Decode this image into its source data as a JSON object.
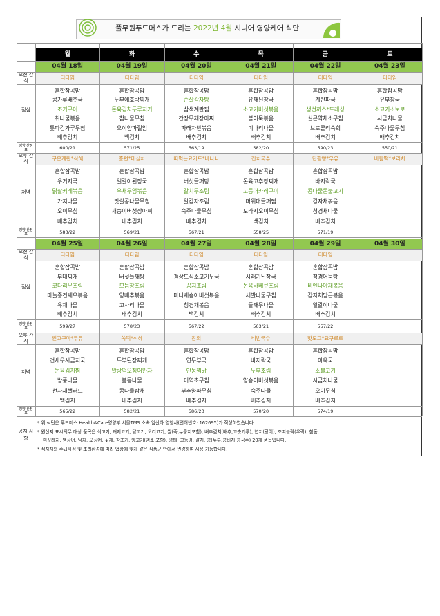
{
  "header": {
    "title_prefix": "풀무원푸드머스가 드리는",
    "title_highlight": "2022년 4월",
    "title_suffix": "시니어 영양케어 식단"
  },
  "weekdays": [
    "월",
    "화",
    "수",
    "목",
    "금",
    "토"
  ],
  "row_labels": {
    "morning_snack": "오전 간식",
    "lunch": "점심",
    "nutrition": "영양 산정표",
    "afternoon_snack": "오후 간식",
    "dinner": "저녁"
  },
  "weeks": [
    {
      "dates": [
        "04월 18일",
        "04월 19일",
        "04월 20일",
        "04월 21일",
        "04월 22일",
        "04월 23일"
      ],
      "morning_snack": [
        "티타임",
        "티타임",
        "티타임",
        "티타임",
        "티타임",
        "티타임"
      ],
      "lunch": [
        {
          "items": [
            "혼합잡곡밥",
            "콩가루배춧국",
            "조기구이",
            "취나물볶음",
            "톳파김가루무침",
            "배추김치"
          ],
          "main": 2
        },
        {
          "items": [
            "혼합잡곡밥",
            "두부애호박찌개",
            "돈육김치두루치기",
            "참나물무침",
            "오이양파절임",
            "백김치"
          ],
          "main": 2
        },
        {
          "items": [
            "혼합잡곡밥",
            "순살감자탕",
            "삼색계란찜",
            "간장무채장아찌",
            "파래자반볶음",
            "배추김치"
          ],
          "main": 1
        },
        {
          "items": [
            "혼합잡곡밥",
            "유채된장국",
            "소고기버섯볶음",
            "볼어묵볶음",
            "미나리나물",
            "배추김치"
          ],
          "main": 2
        },
        {
          "items": [
            "혼합잡곡밥",
            "계란파국",
            "생선까스*드레싱",
            "실곤약채소무침",
            "브로콜리숙회",
            "배추김치"
          ],
          "main": 2
        },
        {
          "items": [
            "혼합잡곡밥",
            "유부장국",
            "소고기소보로",
            "시금치나물",
            "숙주나물무침",
            "배추김치"
          ],
          "main": 2
        }
      ],
      "lunch_nutrition": [
        "600/21",
        "571/25",
        "563/19",
        "582/20",
        "590/23",
        "550/21"
      ],
      "afternoon_snack": [
        "구운계란*식혜",
        "증편*매실차",
        "떠먹는요거트*바나나",
        "잔치국수",
        "단팥빵*우유",
        "바람떡*보리차"
      ],
      "dinner": [
        {
          "items": [
            "혼합잡곡밥",
            "우거지국",
            "닭살커레볶음",
            "가지나물",
            "오이무침",
            "배추김치"
          ],
          "main": 2
        },
        {
          "items": [
            "혼합잡곡밥",
            "얼갈이된장국",
            "우채우엉볶음",
            "맛살콩나물무침",
            "새송이버섯장아찌",
            "배추김치"
          ],
          "main": 2
        },
        {
          "items": [
            "혼합잡곡밥",
            "버섯들깨탕",
            "갈치무조림",
            "알감자조림",
            "숙주나물무침",
            "배추김치"
          ],
          "main": 2
        },
        {
          "items": [
            "혼합잡곡밥",
            "돈육고추장찌개",
            "고등어카레구이",
            "머위대들깨찜",
            "도라지오이무침",
            "백김치"
          ],
          "main": 2
        },
        {
          "items": [
            "혼합잡곡밥",
            "바지락국",
            "콩나물돈불고기",
            "감자채볶음",
            "청경채나물",
            "배추김치"
          ],
          "main": 2
        },
        null
      ],
      "dinner_nutrition": [
        "583/22",
        "569/21",
        "567/21",
        "558/25",
        "571/19",
        null
      ]
    },
    {
      "dates": [
        "04월 25일",
        "04월 26일",
        "04월 27일",
        "04월 28일",
        "04월 29일",
        "04월 30일"
      ],
      "morning_snack": [
        "티타임",
        "티타임",
        "티타임",
        "티타임",
        "티타임",
        null
      ],
      "lunch": [
        {
          "items": [
            "혼합잡곡밥",
            "부대찌개",
            "코다리무조림",
            "마늘종건새우볶음",
            "유채나물",
            "배추김치"
          ],
          "main": 2
        },
        {
          "items": [
            "혼합잡곡밥",
            "버섯들깨탕",
            "모듬장조림",
            "양배추볶음",
            "고사리나물",
            "배추김치"
          ],
          "main": 2
        },
        {
          "items": [
            "혼합잡곡밥",
            "경상도식소고기무국",
            "꽁치조림",
            "미니새송이버섯볶음",
            "청경채볶음",
            "백김치"
          ],
          "main": 2
        },
        {
          "items": [
            "혼합잡곡밥",
            "시래기된장국",
            "돈육바베큐조림",
            "세발나물무침",
            "들깨무나물",
            "배추김치"
          ],
          "main": 2
        },
        {
          "items": [
            "혼합잡곡밥",
            "청경어묵탕",
            "비엔나야채볶음",
            "감자채당근볶음",
            "얼갈이나물",
            "배추김치"
          ],
          "main": 2
        },
        null
      ],
      "lunch_nutrition": [
        "599/27",
        "578/23",
        "567/22",
        "563/21",
        "557/22",
        null
      ],
      "afternoon_snack": [
        "찐고구마*두유",
        "쑥떡*식혜",
        "참외",
        "비빔국수",
        "핫도그*요구르트",
        null
      ],
      "dinner": [
        {
          "items": [
            "혼합잡곡밥",
            "건새우시금치국",
            "돈육김치찜",
            "방풍나물",
            "천사채샐러드",
            "백김치"
          ],
          "main": 2
        },
        {
          "items": [
            "혼합잡곡밥",
            "두부된장찌개",
            "말랑떡오징어완자",
            "봄동나물",
            "콩나물잡채",
            "배추김치"
          ],
          "main": 2
        },
        {
          "items": [
            "혼합잡곡밥",
            "연두부국",
            "안동찜닭",
            "미역초무침",
            "부추양파무침",
            "배추김치"
          ],
          "main": 2
        },
        {
          "items": [
            "혼합잡곡밥",
            "바지락국",
            "두부조림",
            "양송이버섯볶음",
            "숙주나물",
            "배추김치"
          ],
          "main": 2
        },
        {
          "items": [
            "혼합잡곡밥",
            "아욱국",
            "소불고기",
            "시금치나물",
            "오이무침",
            "배추김치"
          ],
          "main": 2
        },
        null
      ],
      "dinner_nutrition": [
        "565/22",
        "582/21",
        "586/23",
        "570/20",
        "574/19",
        null
      ]
    }
  ],
  "notice": {
    "label": "공지 사항",
    "lines": [
      "* 위 식단은 푸드머스 Health&Care영양부 서울TMS 소속 임산하 영양사(면허번호: 162695)가 작성하였습니다.",
      "* 원산지 표시의무 대상 품목은 쇠고기, 돼지고기, 닭고기, 오리고기, 쌀(죽,누룽지포함), 배추김치(배추,고춧가루), 넙치(광어), 조피볼락(우럭), 참돔,",
      "미꾸라지, 뱀장어, 낙지, 오징어, 꽃게, 참조기, 양고기(염소 포함), 명태, 고등어, 갈치, 콩(두부,콩비지,콩국수) 20개 품목입니다.",
      "* 식자재의 수급사정 및 조리환경에 따라 업장에 맞게 같은 식품군 안에서 변경하여 사용 가능합니다."
    ]
  }
}
